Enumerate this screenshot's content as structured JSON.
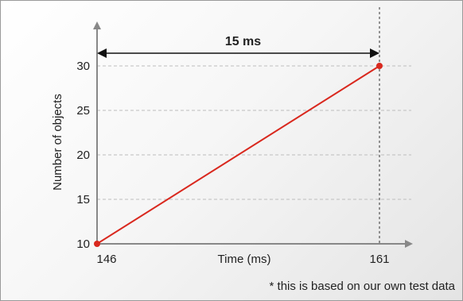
{
  "chart_data": {
    "type": "line",
    "xlabel": "Time (ms)",
    "ylabel": "Number of objects",
    "x_ticks": [
      "146",
      "161"
    ],
    "y_ticks": [
      "10",
      "15",
      "20",
      "25",
      "30"
    ],
    "xlim": [
      146,
      163
    ],
    "ylim": [
      10,
      34
    ],
    "grid": "horizontal dashed",
    "series": [
      {
        "x": [
          146,
          161
        ],
        "y": [
          10,
          30
        ]
      }
    ],
    "annotations": {
      "duration_label": "15 ms",
      "footnote": "* this is based on our own test data"
    },
    "colors": {
      "line": "#d9281e",
      "axis": "#888888",
      "grid": "#bdbdbd",
      "text": "#222222"
    }
  }
}
